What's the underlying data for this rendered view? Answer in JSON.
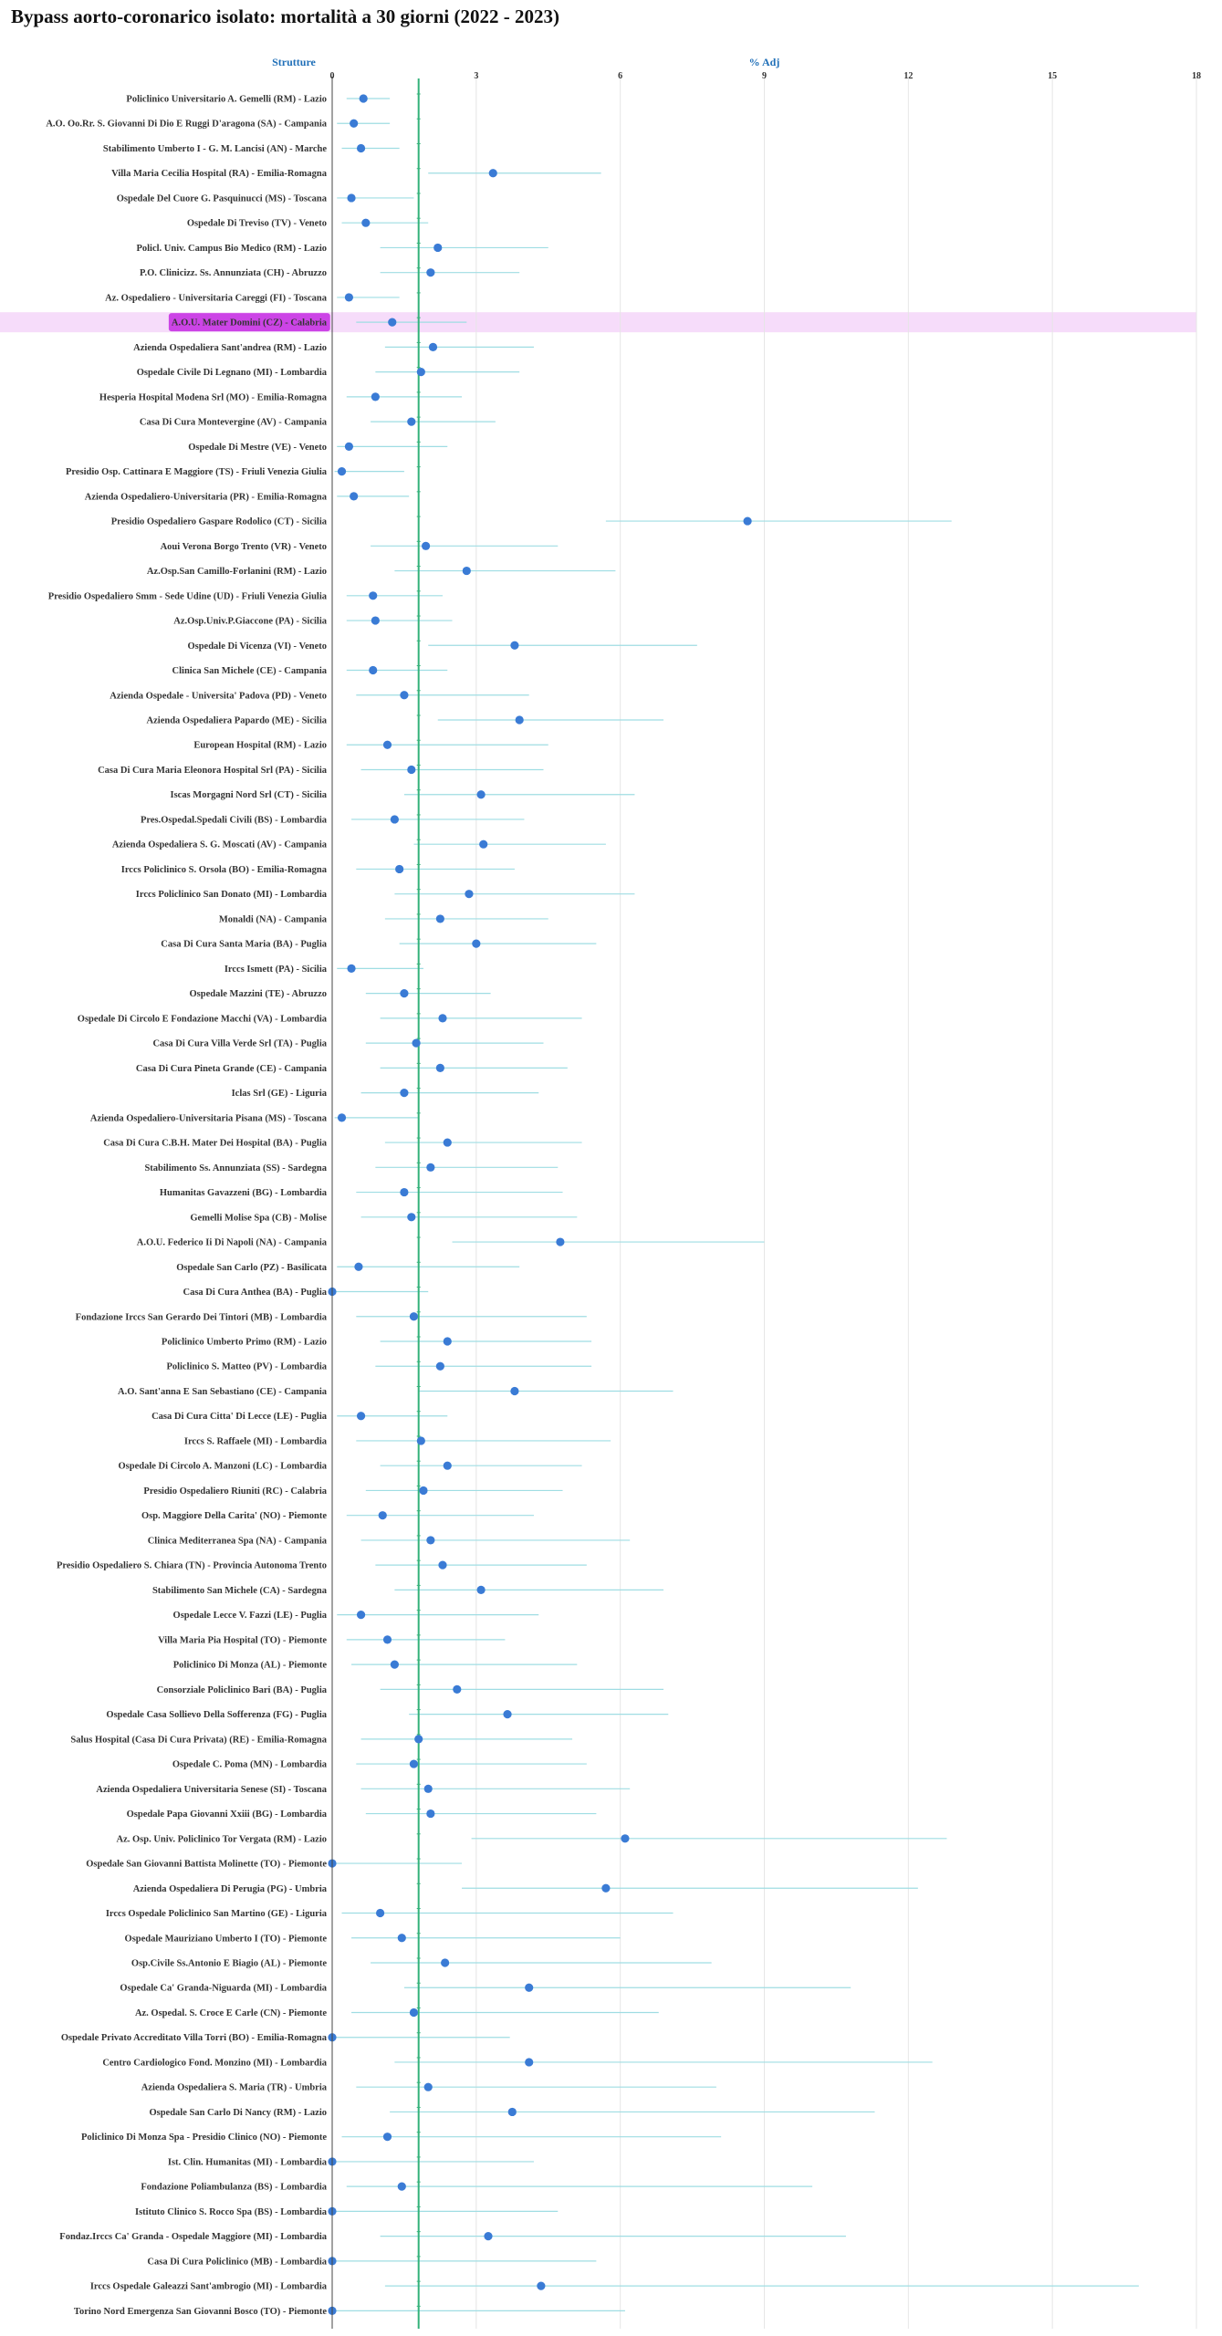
{
  "title": "Bypass aorto-coronarico isolato: mortalità a 30 giorni (2022 - 2023)",
  "colors": {
    "point": "#3a7bd5",
    "ci": "#9fdde3",
    "reference": "#34b27a",
    "highlight_bg": "#f6dcfa",
    "highlight_label_bg": "#cc44e6",
    "grid": "#e6e6e6",
    "axis_title": "#1f6fb8"
  },
  "chart_data": {
    "type": "forest",
    "title": "Bypass aorto-coronarico isolato: mortalità a 30 giorni (2022 - 2023)",
    "ylabel": "Strutture",
    "xlabel": "% Adj",
    "xlim": [
      0,
      18
    ],
    "xticks": [
      0,
      3,
      6,
      9,
      12,
      15,
      18
    ],
    "reference": 1.8,
    "highlight": "A.O.U. Mater Domini (CZ) - Calabria",
    "rows": [
      {
        "name": "Policlinico Universitario A. Gemelli (RM) - Lazio",
        "value": 0.65,
        "lo": 0.3,
        "hi": 1.2
      },
      {
        "name": "A.O. Oo.Rr. S. Giovanni Di Dio E Ruggi D'aragona (SA) - Campania",
        "value": 0.45,
        "lo": 0.1,
        "hi": 1.2
      },
      {
        "name": "Stabilimento  Umberto I - G. M. Lancisi (AN) - Marche",
        "value": 0.6,
        "lo": 0.2,
        "hi": 1.4
      },
      {
        "name": "Villa Maria Cecilia Hospital (RA) - Emilia-Romagna",
        "value": 3.35,
        "lo": 2.0,
        "hi": 5.6
      },
      {
        "name": "Ospedale Del Cuore G. Pasquinucci (MS) - Toscana",
        "value": 0.4,
        "lo": 0.1,
        "hi": 1.7
      },
      {
        "name": "Ospedale Di  Treviso (TV) - Veneto",
        "value": 0.7,
        "lo": 0.2,
        "hi": 2.0
      },
      {
        "name": "Policl. Univ. Campus Bio Medico (RM) - Lazio",
        "value": 2.2,
        "lo": 1.0,
        "hi": 4.5
      },
      {
        "name": "P.O. Clinicizz.  Ss. Annunziata (CH) - Abruzzo",
        "value": 2.05,
        "lo": 1.0,
        "hi": 3.9
      },
      {
        "name": "Az. Ospedaliero - Universitaria Careggi (FI) - Toscana",
        "value": 0.35,
        "lo": 0.1,
        "hi": 1.4
      },
      {
        "name": "A.O.U. Mater Domini (CZ) - Calabria",
        "value": 1.25,
        "lo": 0.5,
        "hi": 2.8
      },
      {
        "name": "Azienda Ospedaliera Sant'andrea (RM) - Lazio",
        "value": 2.1,
        "lo": 1.1,
        "hi": 4.2
      },
      {
        "name": "Ospedale Civile Di Legnano (MI) - Lombardia",
        "value": 1.85,
        "lo": 0.9,
        "hi": 3.9
      },
      {
        "name": "Hesperia Hospital Modena Srl (MO) - Emilia-Romagna",
        "value": 0.9,
        "lo": 0.3,
        "hi": 2.7
      },
      {
        "name": "Casa Di Cura Montevergine (AV) - Campania",
        "value": 1.65,
        "lo": 0.8,
        "hi": 3.4
      },
      {
        "name": "Ospedale Di Mestre (VE) - Veneto",
        "value": 0.35,
        "lo": 0.1,
        "hi": 2.4
      },
      {
        "name": "Presidio Osp. Cattinara E Maggiore (TS) - Friuli Venezia Giulia",
        "value": 0.2,
        "lo": 0.05,
        "hi": 1.5
      },
      {
        "name": "Azienda Ospedaliero-Universitaria (PR) - Emilia-Romagna",
        "value": 0.45,
        "lo": 0.1,
        "hi": 1.6
      },
      {
        "name": "Presidio Ospedaliero Gaspare Rodolico (CT) - Sicilia",
        "value": 8.65,
        "lo": 5.7,
        "hi": 12.9
      },
      {
        "name": "Aoui Verona Borgo Trento (VR) - Veneto",
        "value": 1.95,
        "lo": 0.8,
        "hi": 4.7
      },
      {
        "name": "Az.Osp.San Camillo-Forlanini (RM) - Lazio",
        "value": 2.8,
        "lo": 1.3,
        "hi": 5.9
      },
      {
        "name": "Presidio Ospedaliero Smm - Sede Udine (UD) - Friuli Venezia Giulia",
        "value": 0.85,
        "lo": 0.3,
        "hi": 2.3
      },
      {
        "name": "Az.Osp.Univ.P.Giaccone (PA) - Sicilia",
        "value": 0.9,
        "lo": 0.3,
        "hi": 2.5
      },
      {
        "name": "Ospedale Di Vicenza (VI) - Veneto",
        "value": 3.8,
        "lo": 2.0,
        "hi": 7.6
      },
      {
        "name": "Clinica San Michele (CE) - Campania",
        "value": 0.85,
        "lo": 0.3,
        "hi": 2.4
      },
      {
        "name": "Azienda Ospedale - Universita' Padova (PD) - Veneto",
        "value": 1.5,
        "lo": 0.5,
        "hi": 4.1
      },
      {
        "name": "Azienda Ospedaliera Papardo (ME) - Sicilia",
        "value": 3.9,
        "lo": 2.2,
        "hi": 6.9
      },
      {
        "name": "European Hospital (RM) - Lazio",
        "value": 1.15,
        "lo": 0.3,
        "hi": 4.5
      },
      {
        "name": "Casa Di Cura Maria Eleonora Hospital Srl (PA) - Sicilia",
        "value": 1.65,
        "lo": 0.6,
        "hi": 4.4
      },
      {
        "name": "Iscas Morgagni Nord Srl (CT) - Sicilia",
        "value": 3.1,
        "lo": 1.5,
        "hi": 6.3
      },
      {
        "name": "Pres.Ospedal.Spedali Civili (BS) - Lombardia",
        "value": 1.3,
        "lo": 0.4,
        "hi": 4.0
      },
      {
        "name": "Azienda Ospedaliera S. G. Moscati (AV) - Campania",
        "value": 3.15,
        "lo": 1.7,
        "hi": 5.7
      },
      {
        "name": "Irccs Policlinico S. Orsola (BO) - Emilia-Romagna",
        "value": 1.4,
        "lo": 0.5,
        "hi": 3.8
      },
      {
        "name": "Irccs Policlinico San Donato (MI) - Lombardia",
        "value": 2.85,
        "lo": 1.3,
        "hi": 6.3
      },
      {
        "name": "Monaldi (NA) - Campania",
        "value": 2.25,
        "lo": 1.1,
        "hi": 4.5
      },
      {
        "name": "Casa Di Cura Santa Maria (BA) - Puglia",
        "value": 3.0,
        "lo": 1.4,
        "hi": 5.5
      },
      {
        "name": "Irccs Ismett (PA) - Sicilia",
        "value": 0.4,
        "lo": 0.1,
        "hi": 1.9
      },
      {
        "name": "Ospedale Mazzini (TE) - Abruzzo",
        "value": 1.5,
        "lo": 0.7,
        "hi": 3.3
      },
      {
        "name": "Ospedale Di Circolo E Fondazione Macchi (VA) - Lombardia",
        "value": 2.3,
        "lo": 1.0,
        "hi": 5.2
      },
      {
        "name": "Casa Di Cura Villa Verde Srl (TA) - Puglia",
        "value": 1.75,
        "lo": 0.7,
        "hi": 4.4
      },
      {
        "name": "Casa Di Cura Pineta Grande (CE) - Campania",
        "value": 2.25,
        "lo": 1.0,
        "hi": 4.9
      },
      {
        "name": "Iclas Srl (GE) - Liguria",
        "value": 1.5,
        "lo": 0.6,
        "hi": 4.3
      },
      {
        "name": "Azienda Ospedaliero-Universitaria Pisana (MS) - Toscana",
        "value": 0.2,
        "lo": 0.05,
        "hi": 1.8
      },
      {
        "name": "Casa Di Cura C.B.H. Mater Dei Hospital (BA) - Puglia",
        "value": 2.4,
        "lo": 1.1,
        "hi": 5.2
      },
      {
        "name": "Stabilimento Ss. Annunziata (SS) - Sardegna",
        "value": 2.05,
        "lo": 0.9,
        "hi": 4.7
      },
      {
        "name": "Humanitas Gavazzeni (BG) - Lombardia",
        "value": 1.5,
        "lo": 0.5,
        "hi": 4.8
      },
      {
        "name": "Gemelli Molise Spa (CB) - Molise",
        "value": 1.65,
        "lo": 0.6,
        "hi": 5.1
      },
      {
        "name": "A.O.U.  Federico Ii  Di Napoli (NA) - Campania",
        "value": 4.75,
        "lo": 2.5,
        "hi": 9.0
      },
      {
        "name": "Ospedale San Carlo (PZ) - Basilicata",
        "value": 0.55,
        "lo": 0.1,
        "hi": 3.9
      },
      {
        "name": "Casa Di Cura Anthea (BA) - Puglia",
        "value": 0.0,
        "lo": 0.0,
        "hi": 2.0
      },
      {
        "name": "Fondazione Irccs San Gerardo Dei Tintori (MB) - Lombardia",
        "value": 1.7,
        "lo": 0.5,
        "hi": 5.3
      },
      {
        "name": "Policlinico Umberto Primo (RM) - Lazio",
        "value": 2.4,
        "lo": 1.0,
        "hi": 5.4
      },
      {
        "name": "Policlinico S. Matteo (PV) - Lombardia",
        "value": 2.25,
        "lo": 0.9,
        "hi": 5.4
      },
      {
        "name": "A.O. Sant'anna E San Sebastiano (CE) - Campania",
        "value": 3.8,
        "lo": 1.8,
        "hi": 7.1
      },
      {
        "name": "Casa Di Cura Citta' Di Lecce (LE) - Puglia",
        "value": 0.6,
        "lo": 0.1,
        "hi": 2.4
      },
      {
        "name": "Irccs S. Raffaele (MI) - Lombardia",
        "value": 1.85,
        "lo": 0.5,
        "hi": 5.8
      },
      {
        "name": "Ospedale Di Circolo A. Manzoni (LC) - Lombardia",
        "value": 2.4,
        "lo": 1.0,
        "hi": 5.2
      },
      {
        "name": "Presidio Ospedaliero Riuniti (RC) - Calabria",
        "value": 1.9,
        "lo": 0.7,
        "hi": 4.8
      },
      {
        "name": "Osp. Maggiore Della Carita' (NO) - Piemonte",
        "value": 1.05,
        "lo": 0.3,
        "hi": 4.2
      },
      {
        "name": "Clinica Mediterranea Spa (NA) - Campania",
        "value": 2.05,
        "lo": 0.6,
        "hi": 6.2
      },
      {
        "name": "Presidio Ospedaliero S. Chiara (TN) - Provincia Autonoma Trento",
        "value": 2.3,
        "lo": 0.9,
        "hi": 5.3
      },
      {
        "name": "Stabilimento San Michele (CA) - Sardegna",
        "value": 3.1,
        "lo": 1.3,
        "hi": 6.9
      },
      {
        "name": "Ospedale Lecce  V. Fazzi (LE) - Puglia",
        "value": 0.6,
        "lo": 0.1,
        "hi": 4.3
      },
      {
        "name": "Villa Maria Pia Hospital (TO) - Piemonte",
        "value": 1.15,
        "lo": 0.3,
        "hi": 3.6
      },
      {
        "name": "Policlinico Di Monza (AL) - Piemonte",
        "value": 1.3,
        "lo": 0.4,
        "hi": 5.1
      },
      {
        "name": "Consorziale Policlinico Bari (BA) - Puglia",
        "value": 2.6,
        "lo": 1.0,
        "hi": 6.9
      },
      {
        "name": "Ospedale Casa Sollievo Della Sofferenza (FG) - Puglia",
        "value": 3.65,
        "lo": 1.6,
        "hi": 7.0
      },
      {
        "name": "Salus Hospital (Casa Di Cura Privata) (RE) - Emilia-Romagna",
        "value": 1.8,
        "lo": 0.6,
        "hi": 5.0
      },
      {
        "name": "Ospedale C. Poma (MN) - Lombardia",
        "value": 1.7,
        "lo": 0.5,
        "hi": 5.3
      },
      {
        "name": "Azienda Ospedaliera Universitaria Senese (SI) - Toscana",
        "value": 2.0,
        "lo": 0.6,
        "hi": 6.2
      },
      {
        "name": "Ospedale Papa Giovanni Xxiii (BG) - Lombardia",
        "value": 2.05,
        "lo": 0.7,
        "hi": 5.5
      },
      {
        "name": "Az. Osp. Univ. Policlinico Tor Vergata (RM) - Lazio",
        "value": 6.1,
        "lo": 2.9,
        "hi": 12.8
      },
      {
        "name": "Ospedale San Giovanni Battista Molinette (TO) - Piemonte",
        "value": 0.0,
        "lo": 0.0,
        "hi": 2.7
      },
      {
        "name": "Azienda Ospedaliera Di Perugia (PG) - Umbria",
        "value": 5.7,
        "lo": 2.7,
        "hi": 12.2
      },
      {
        "name": "Irccs Ospedale Policlinico San Martino (GE) - Liguria",
        "value": 1.0,
        "lo": 0.2,
        "hi": 7.1
      },
      {
        "name": "Ospedale Mauriziano Umberto I (TO) - Piemonte",
        "value": 1.45,
        "lo": 0.4,
        "hi": 6.0
      },
      {
        "name": "Osp.Civile Ss.Antonio E Biagio (AL) - Piemonte",
        "value": 2.35,
        "lo": 0.8,
        "hi": 7.9
      },
      {
        "name": "Ospedale Ca' Granda-Niguarda (MI) - Lombardia",
        "value": 4.1,
        "lo": 1.5,
        "hi": 10.8
      },
      {
        "name": "Az. Ospedal. S. Croce E Carle (CN) - Piemonte",
        "value": 1.7,
        "lo": 0.4,
        "hi": 6.8
      },
      {
        "name": "Ospedale Privato Accreditato Villa Torri (BO) - Emilia-Romagna",
        "value": 0.0,
        "lo": 0.0,
        "hi": 3.7
      },
      {
        "name": "Centro Cardiologico  Fond. Monzino (MI) - Lombardia",
        "value": 4.1,
        "lo": 1.3,
        "hi": 12.5
      },
      {
        "name": "Azienda Ospedaliera  S. Maria (TR) - Umbria",
        "value": 2.0,
        "lo": 0.5,
        "hi": 8.0
      },
      {
        "name": "Ospedale San Carlo Di Nancy (RM) - Lazio",
        "value": 3.75,
        "lo": 1.2,
        "hi": 11.3
      },
      {
        "name": "Policlinico Di Monza Spa - Presidio Clinico (NO) - Piemonte",
        "value": 1.15,
        "lo": 0.2,
        "hi": 8.1
      },
      {
        "name": "Ist. Clin. Humanitas (MI) - Lombardia",
        "value": 0.0,
        "lo": 0.0,
        "hi": 4.2
      },
      {
        "name": "Fondazione Poliambulanza (BS) - Lombardia",
        "value": 1.45,
        "lo": 0.3,
        "hi": 10.0
      },
      {
        "name": "Istituto Clinico S. Rocco Spa (BS) - Lombardia",
        "value": 0.0,
        "lo": 0.0,
        "hi": 4.7
      },
      {
        "name": "Fondaz.Irccs Ca' Granda - Ospedale Maggiore (MI) - Lombardia",
        "value": 3.25,
        "lo": 1.0,
        "hi": 10.7
      },
      {
        "name": "Casa Di Cura Policlinico (MB) - Lombardia",
        "value": 0.0,
        "lo": 0.0,
        "hi": 5.5
      },
      {
        "name": "Irccs Ospedale Galeazzi Sant'ambrogio (MI) - Lombardia",
        "value": 4.35,
        "lo": 1.1,
        "hi": 16.8
      },
      {
        "name": "Torino Nord Emergenza San Giovanni Bosco (TO) - Piemonte",
        "value": 0.0,
        "lo": 0.0,
        "hi": 6.1
      }
    ]
  }
}
